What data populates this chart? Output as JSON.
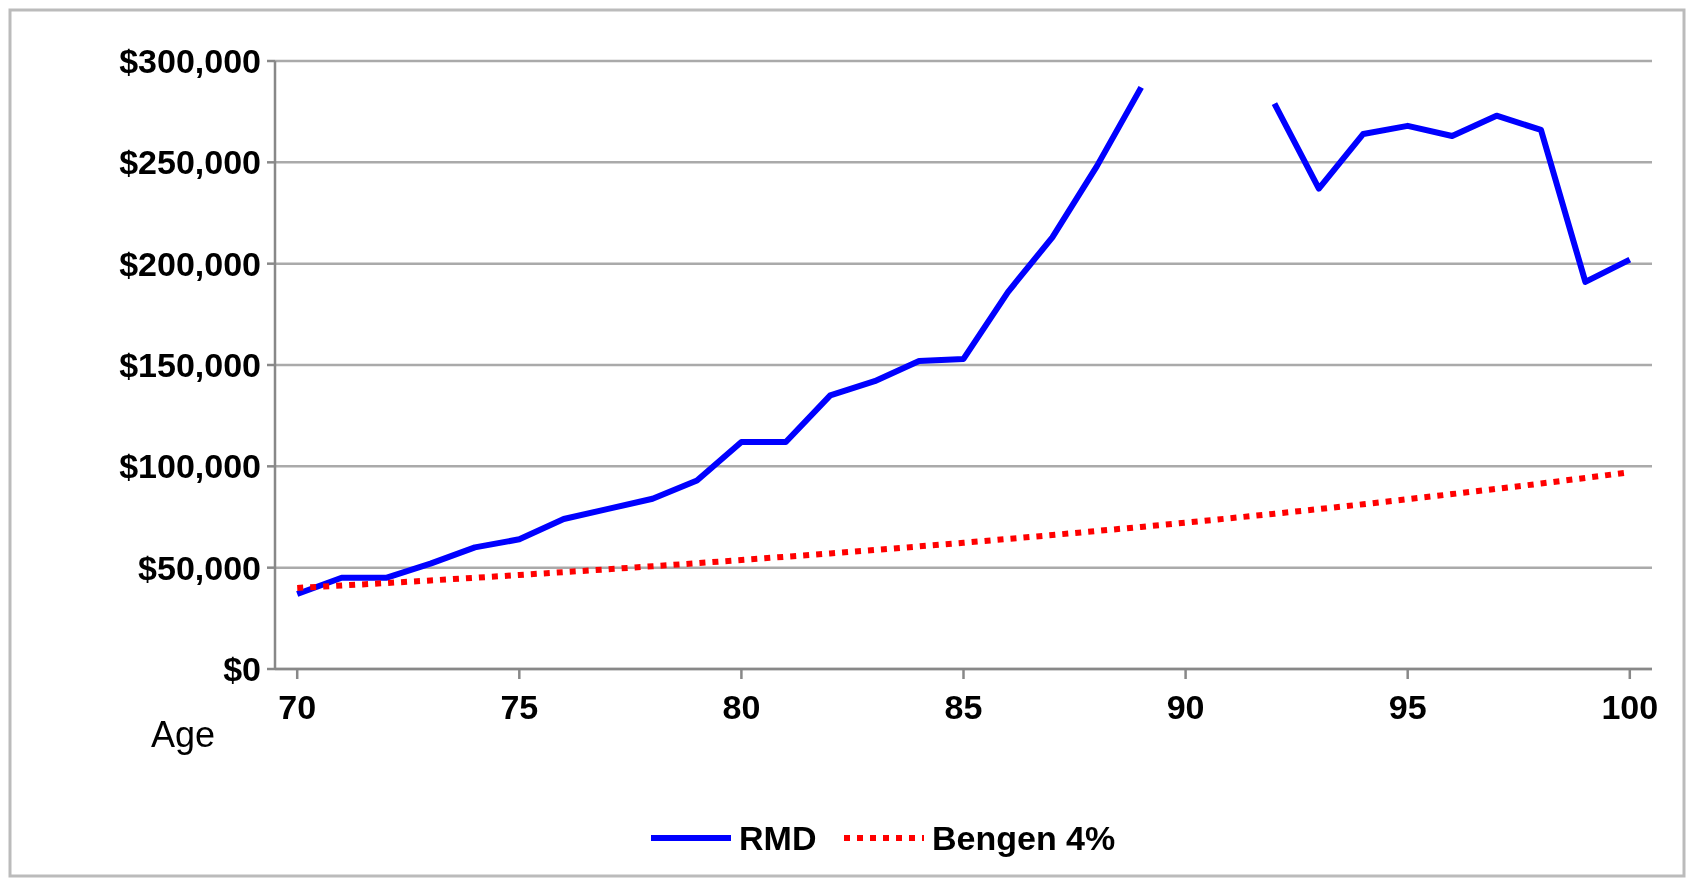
{
  "chart_data": {
    "type": "line",
    "xlabel": "Age",
    "x": [
      70,
      71,
      72,
      73,
      74,
      75,
      76,
      77,
      78,
      79,
      80,
      81,
      82,
      83,
      84,
      85,
      86,
      87,
      88,
      89,
      90,
      91,
      92,
      93,
      94,
      95,
      96,
      97,
      98,
      99,
      100
    ],
    "series": [
      {
        "name": "RMD",
        "color": "#0000ff",
        "line_style": "solid",
        "values": [
          37000,
          45000,
          45000,
          52000,
          60000,
          64000,
          74000,
          79000,
          84000,
          93000,
          112000,
          112000,
          135000,
          142000,
          152000,
          153000,
          186000,
          213000,
          248000,
          287000,
          null,
          null,
          279000,
          237000,
          264000,
          268000,
          263000,
          273000,
          266000,
          191000,
          202000
        ]
      },
      {
        "name": "Bengen 4%",
        "color": "#ff0000",
        "line_style": "dotted",
        "values": [
          40000,
          41200,
          42400,
          43700,
          45000,
          46400,
          47800,
          49200,
          50700,
          52200,
          53800,
          55400,
          57000,
          58700,
          60500,
          62300,
          64200,
          66100,
          68100,
          70100,
          72200,
          74400,
          76600,
          78900,
          81300,
          83800,
          86300,
          88900,
          91500,
          94300,
          97100
        ]
      }
    ],
    "xlim": [
      69.5,
      100.5
    ],
    "xticks": [
      70,
      75,
      80,
      85,
      90,
      95,
      100
    ],
    "ylim": [
      0,
      300000
    ],
    "yticks": [
      {
        "value": 0,
        "label": "$0"
      },
      {
        "value": 50000,
        "label": "$50,000"
      },
      {
        "value": 100000,
        "label": "$100,000"
      },
      {
        "value": 150000,
        "label": "$150,000"
      },
      {
        "value": 200000,
        "label": "$200,000"
      },
      {
        "value": 250000,
        "label": "$250,000"
      },
      {
        "value": 300000,
        "label": "$300,000"
      }
    ],
    "grid": "y",
    "legend": "bottom",
    "marker": "none"
  }
}
